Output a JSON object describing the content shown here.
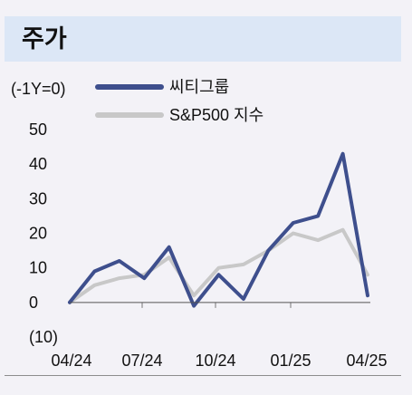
{
  "header": {
    "title": "주가"
  },
  "chart_data": {
    "type": "line",
    "unit_label": "(-1Y=0)",
    "x_tick_labels": [
      "04/24",
      "07/24",
      "10/24",
      "01/25",
      "04/25"
    ],
    "y_tick_labels": [
      "50",
      "40",
      "30",
      "20",
      "10",
      "0",
      "(10)"
    ],
    "ylim": [
      -10,
      50
    ],
    "x": [
      0,
      1,
      2,
      3,
      4,
      5,
      6,
      7,
      8,
      9,
      10,
      11,
      12
    ],
    "series": [
      {
        "name": "씨티그룹",
        "color": "#3e4f8d",
        "values": [
          0,
          9,
          12,
          7,
          16,
          -1,
          8,
          1,
          15,
          23,
          25,
          43,
          2
        ]
      },
      {
        "name": "S&P500 지수",
        "color": "#c8c8c8",
        "values": [
          0,
          5,
          7,
          8,
          13,
          2,
          10,
          11,
          15,
          20,
          18,
          21,
          8
        ]
      }
    ],
    "grid": false,
    "legend": "top"
  }
}
